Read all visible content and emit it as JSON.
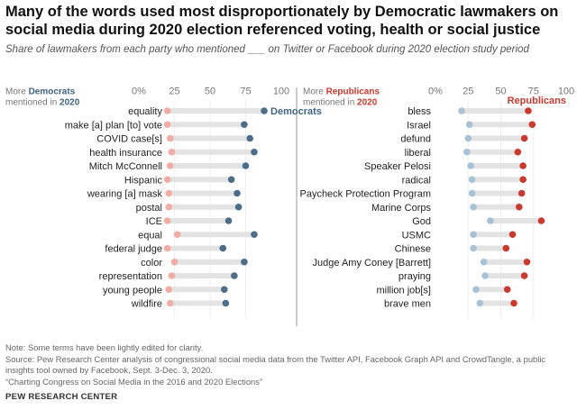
{
  "title": "Many of the words used most disproportionately by Democratic lawmakers on social media during 2020 election referenced voting, health or social justice",
  "subtitle": "Share of lawmakers from each party who mentioned ___ on Twitter or Facebook during 2020 election study period",
  "colors": {
    "democrat": "#4c6c88",
    "democrat_text": "#3f6485",
    "republican": "#c9392e",
    "republican_light": "#eba29c",
    "democrat_light": "#a7c1d6",
    "track": "#e3e3e3",
    "axis": "#666666"
  },
  "chart_data": [
    {
      "type": "dot",
      "panel": "left",
      "header_prefix": "More ",
      "header_party": "Democrats",
      "header_line2_prefix": "mentioned in ",
      "header_year": "2020",
      "tick_labels": [
        "0%",
        "25",
        "50",
        "75",
        "100"
      ],
      "xlim": [
        0,
        100
      ],
      "series_label": "Democrats",
      "categories": [
        "equality",
        "make [a] plan [to] vote",
        "COVID case[s]",
        "health insurance",
        "Mitch McConnell",
        "Hispanic",
        "wearing [a] mask",
        "postal",
        "ICE",
        "equal",
        "federal judge",
        "color",
        "representation",
        "young people",
        "wildfire"
      ],
      "series": [
        {
          "name": "Republicans",
          "values": [
            20,
            20,
            22,
            23,
            22,
            20,
            21,
            21,
            20,
            27,
            20,
            25,
            23,
            21,
            22
          ]
        },
        {
          "name": "Democrats",
          "values": [
            88,
            74,
            78,
            81,
            75,
            65,
            69,
            70,
            63,
            81,
            59,
            74,
            67,
            60,
            61
          ]
        }
      ]
    },
    {
      "type": "dot",
      "panel": "right",
      "header_prefix": "More ",
      "header_party": "Republicans",
      "header_line2_prefix": "mentioned in ",
      "header_year": "2020",
      "tick_labels": [
        "0%",
        "25",
        "50",
        "75",
        "100"
      ],
      "xlim": [
        0,
        100
      ],
      "series_label": "Republicans",
      "categories": [
        "bless",
        "Israel",
        "defund",
        "liberal",
        "Speaker Pelosi",
        "radical",
        "Paycheck Protection Program",
        "Marine Corps",
        "God",
        "USMC",
        "Chinese",
        "Judge Amy Coney [Barrett]",
        "praying",
        "million job[s]",
        "brave men"
      ],
      "series": [
        {
          "name": "Democrats",
          "values": [
            20,
            26,
            25,
            24,
            27,
            28,
            28,
            29,
            42,
            29,
            29,
            37,
            38,
            31,
            34
          ]
        },
        {
          "name": "Republicans",
          "values": [
            71,
            74,
            68,
            63,
            67,
            67,
            66,
            64,
            81,
            59,
            54,
            70,
            68,
            55,
            60
          ]
        }
      ]
    }
  ],
  "notes": [
    "Note: Some terms have been lightly edited for clarity.",
    "Source: Pew Research Center analysis of congressional social media data from the Twitter API, Facebook Graph API and CrowdTangle, a public",
    "insights tool owned by Facebook, Sept. 3-Dec. 3, 2020.",
    "“Charting Congress on Social Media in the 2016 and 2020 Elections”"
  ],
  "brand": "PEW RESEARCH CENTER"
}
